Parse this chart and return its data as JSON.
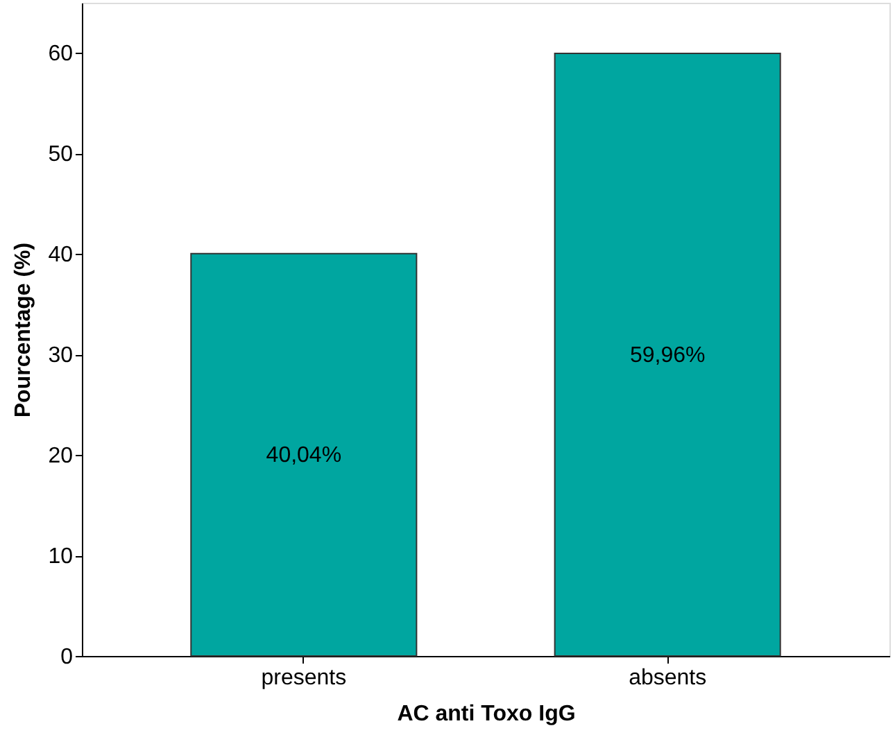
{
  "chart_data": {
    "type": "bar",
    "xlabel": "AC anti Toxo IgG",
    "ylabel": "Pourcentage (%)",
    "categories": [
      "presents",
      "absents"
    ],
    "values": [
      40.04,
      59.96
    ],
    "value_labels": [
      "40,04%",
      "59,96%"
    ],
    "color": "#00a6a0",
    "ylim": [
      0,
      65
    ],
    "yticks": [
      0,
      10,
      20,
      30,
      40,
      50,
      60
    ],
    "grid": false
  }
}
